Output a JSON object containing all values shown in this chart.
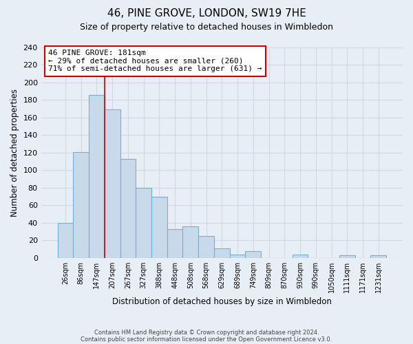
{
  "title": "46, PINE GROVE, LONDON, SW19 7HE",
  "subtitle": "Size of property relative to detached houses in Wimbledon",
  "xlabel": "Distribution of detached houses by size in Wimbledon",
  "ylabel": "Number of detached properties",
  "bin_labels": [
    "26sqm",
    "86sqm",
    "147sqm",
    "207sqm",
    "267sqm",
    "327sqm",
    "388sqm",
    "448sqm",
    "508sqm",
    "568sqm",
    "629sqm",
    "689sqm",
    "749sqm",
    "809sqm",
    "870sqm",
    "930sqm",
    "990sqm",
    "1050sqm",
    "1111sqm",
    "1171sqm",
    "1231sqm"
  ],
  "bin_values": [
    40,
    121,
    186,
    169,
    113,
    80,
    70,
    33,
    36,
    25,
    11,
    4,
    8,
    0,
    0,
    4,
    0,
    0,
    3,
    0,
    3
  ],
  "bar_color": "#c8d9ea",
  "bar_edge_color": "#7aafd4",
  "vline_color": "#cc0000",
  "vline_x_index": 2.5,
  "annotation_line1": "46 PINE GROVE: 181sqm",
  "annotation_line2": "← 29% of detached houses are smaller (260)",
  "annotation_line3": "71% of semi-detached houses are larger (631) →",
  "annotation_box_facecolor": "#ffffff",
  "annotation_border_color": "#cc0000",
  "ylim": [
    0,
    240
  ],
  "yticks": [
    0,
    20,
    40,
    60,
    80,
    100,
    120,
    140,
    160,
    180,
    200,
    220,
    240
  ],
  "grid_color": "#d0d8e8",
  "background_color": "#e8eef5",
  "footnote1": "Contains HM Land Registry data © Crown copyright and database right 2024.",
  "footnote2": "Contains public sector information licensed under the Open Government Licence v3.0."
}
